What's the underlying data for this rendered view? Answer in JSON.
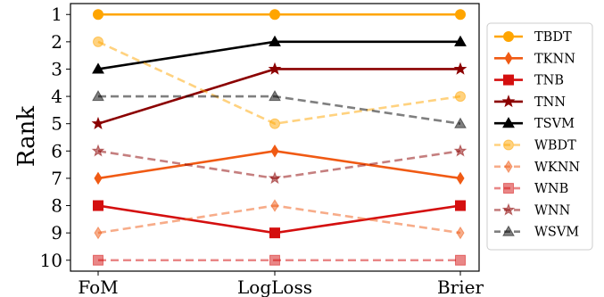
{
  "chart_data": {
    "type": "line",
    "title": "",
    "xlabel": "",
    "ylabel": "Rank",
    "categories": [
      "FoM",
      "LogLoss",
      "Brier"
    ],
    "yticks": [
      1,
      2,
      3,
      4,
      5,
      6,
      7,
      8,
      9,
      10
    ],
    "ylim": [
      10.4,
      0.6
    ],
    "y_inverted": true,
    "grid": false,
    "legend_position": "right",
    "series": [
      {
        "name": "TBDT",
        "values": [
          1,
          1,
          1
        ],
        "color": "#ffa500",
        "marker": "circle",
        "dashed": false,
        "opacity": 1.0
      },
      {
        "name": "TKNN",
        "values": [
          7,
          6,
          7
        ],
        "color": "#f05a14",
        "marker": "diamond",
        "dashed": false,
        "opacity": 1.0
      },
      {
        "name": "TNB",
        "values": [
          8,
          9,
          8
        ],
        "color": "#d40f0f",
        "marker": "square",
        "dashed": false,
        "opacity": 1.0
      },
      {
        "name": "TNN",
        "values": [
          5,
          3,
          3
        ],
        "color": "#8b0000",
        "marker": "star",
        "dashed": false,
        "opacity": 1.0
      },
      {
        "name": "TSVM",
        "values": [
          3,
          2,
          2
        ],
        "color": "#000000",
        "marker": "triangle",
        "dashed": false,
        "opacity": 1.0
      },
      {
        "name": "WBDT",
        "values": [
          2,
          5,
          4
        ],
        "color": "#ffa500",
        "marker": "circle",
        "dashed": true,
        "opacity": 0.5
      },
      {
        "name": "WKNN",
        "values": [
          9,
          8,
          9
        ],
        "color": "#f05a14",
        "marker": "diamond",
        "dashed": true,
        "opacity": 0.5
      },
      {
        "name": "WNB",
        "values": [
          10,
          10,
          10
        ],
        "color": "#d40f0f",
        "marker": "square",
        "dashed": true,
        "opacity": 0.5
      },
      {
        "name": "WNN",
        "values": [
          6,
          7,
          6
        ],
        "color": "#8b0000",
        "marker": "star",
        "dashed": true,
        "opacity": 0.5
      },
      {
        "name": "WSVM",
        "values": [
          4,
          4,
          5
        ],
        "color": "#000000",
        "marker": "triangle",
        "dashed": true,
        "opacity": 0.5
      }
    ]
  }
}
